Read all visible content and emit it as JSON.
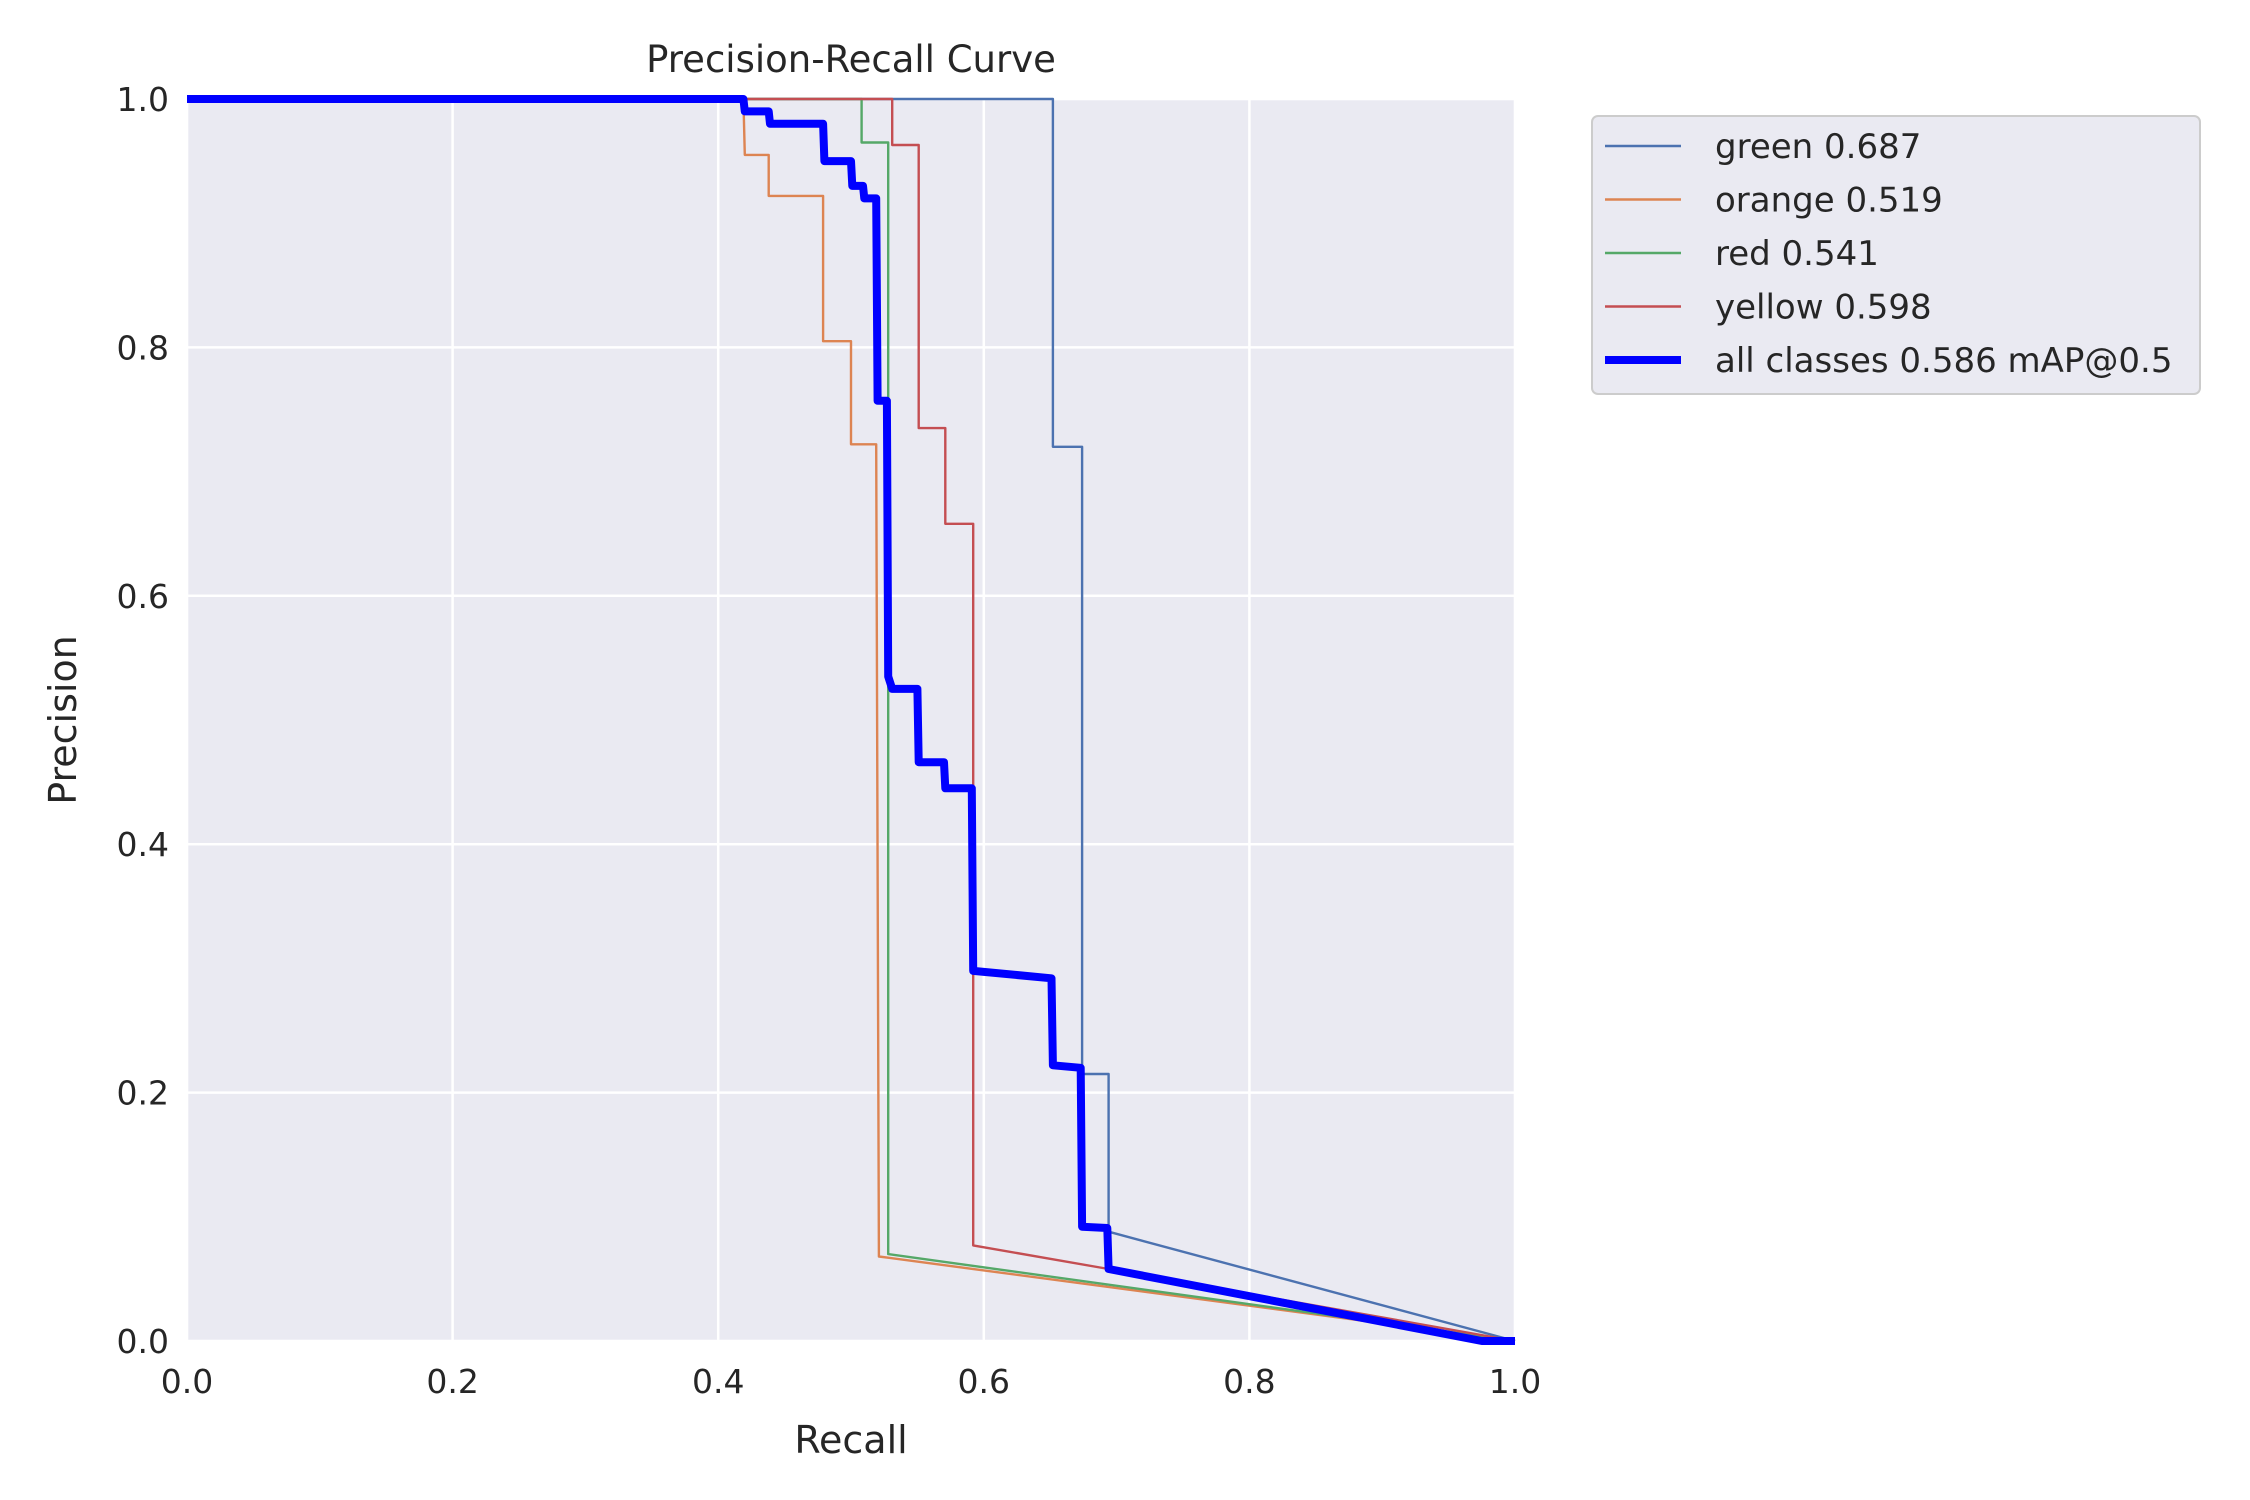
{
  "chart_data": {
    "type": "line",
    "title": "Precision-Recall Curve",
    "xlabel": "Recall",
    "ylabel": "Precision",
    "xlim": [
      0.0,
      1.0
    ],
    "ylim": [
      0.0,
      1.0
    ],
    "xticks": [
      "0.0",
      "0.2",
      "0.4",
      "0.6",
      "0.8",
      "1.0"
    ],
    "yticks": [
      "0.0",
      "0.2",
      "0.4",
      "0.6",
      "0.8",
      "1.0"
    ],
    "grid": true,
    "legend_position": "outside-top-right",
    "series": [
      {
        "name": "green 0.687",
        "color": "#4c72b0",
        "width": "thin",
        "points": [
          [
            0.0,
            1.0
          ],
          [
            0.652,
            1.0
          ],
          [
            0.652,
            0.72
          ],
          [
            0.674,
            0.72
          ],
          [
            0.674,
            0.215
          ],
          [
            0.694,
            0.215
          ],
          [
            0.694,
            0.088
          ],
          [
            1.0,
            0.0
          ]
        ]
      },
      {
        "name": "orange 0.519",
        "color": "#dd8452",
        "width": "thin",
        "points": [
          [
            0.0,
            1.0
          ],
          [
            0.419,
            1.0
          ],
          [
            0.42,
            0.955
          ],
          [
            0.438,
            0.955
          ],
          [
            0.438,
            0.922
          ],
          [
            0.479,
            0.922
          ],
          [
            0.479,
            0.805
          ],
          [
            0.5,
            0.805
          ],
          [
            0.5,
            0.722
          ],
          [
            0.519,
            0.722
          ],
          [
            0.521,
            0.068
          ],
          [
            1.0,
            0.0
          ]
        ]
      },
      {
        "name": "red 0.541",
        "color": "#55a868",
        "width": "thin",
        "points": [
          [
            0.0,
            1.0
          ],
          [
            0.508,
            1.0
          ],
          [
            0.508,
            0.965
          ],
          [
            0.528,
            0.965
          ],
          [
            0.528,
            0.07
          ],
          [
            1.0,
            0.0
          ]
        ]
      },
      {
        "name": "yellow 0.598",
        "color": "#c44e52",
        "width": "thin",
        "points": [
          [
            0.0,
            1.0
          ],
          [
            0.531,
            1.0
          ],
          [
            0.531,
            0.963
          ],
          [
            0.551,
            0.963
          ],
          [
            0.551,
            0.735
          ],
          [
            0.571,
            0.735
          ],
          [
            0.571,
            0.658
          ],
          [
            0.592,
            0.658
          ],
          [
            0.592,
            0.077
          ],
          [
            0.694,
            0.058
          ],
          [
            1.0,
            0.0
          ]
        ]
      },
      {
        "name": "all classes 0.586 mAP@0.5",
        "color": "#0000ff",
        "width": "thick",
        "points": [
          [
            0.0,
            1.0
          ],
          [
            0.419,
            1.0
          ],
          [
            0.42,
            0.99
          ],
          [
            0.438,
            0.99
          ],
          [
            0.439,
            0.98
          ],
          [
            0.479,
            0.98
          ],
          [
            0.48,
            0.95
          ],
          [
            0.5,
            0.95
          ],
          [
            0.501,
            0.93
          ],
          [
            0.509,
            0.93
          ],
          [
            0.51,
            0.92
          ],
          [
            0.519,
            0.92
          ],
          [
            0.52,
            0.757
          ],
          [
            0.527,
            0.757
          ],
          [
            0.528,
            0.535
          ],
          [
            0.531,
            0.525
          ],
          [
            0.55,
            0.525
          ],
          [
            0.551,
            0.466
          ],
          [
            0.57,
            0.466
          ],
          [
            0.571,
            0.445
          ],
          [
            0.591,
            0.445
          ],
          [
            0.592,
            0.298
          ],
          [
            0.651,
            0.292
          ],
          [
            0.652,
            0.222
          ],
          [
            0.673,
            0.22
          ],
          [
            0.674,
            0.092
          ],
          [
            0.693,
            0.091
          ],
          [
            0.694,
            0.058
          ],
          [
            0.975,
            0.0
          ],
          [
            1.0,
            0.0
          ]
        ]
      }
    ]
  }
}
